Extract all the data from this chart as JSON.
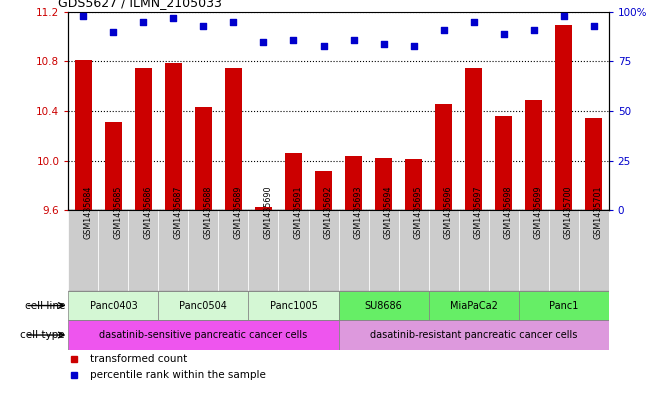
{
  "title": "GDS5627 / ILMN_2105033",
  "samples": [
    "GSM1435684",
    "GSM1435685",
    "GSM1435686",
    "GSM1435687",
    "GSM1435688",
    "GSM1435689",
    "GSM1435690",
    "GSM1435691",
    "GSM1435692",
    "GSM1435693",
    "GSM1435694",
    "GSM1435695",
    "GSM1435696",
    "GSM1435697",
    "GSM1435698",
    "GSM1435699",
    "GSM1435700",
    "GSM1435701"
  ],
  "bar_values": [
    10.81,
    10.31,
    10.75,
    10.79,
    10.43,
    10.75,
    9.63,
    10.06,
    9.92,
    10.04,
    10.02,
    10.01,
    10.46,
    10.75,
    10.36,
    10.49,
    11.09,
    10.34
  ],
  "percentile_values": [
    98,
    90,
    95,
    97,
    93,
    95,
    85,
    86,
    83,
    86,
    84,
    83,
    91,
    95,
    89,
    91,
    98,
    93
  ],
  "ylim_left": [
    9.6,
    11.2
  ],
  "ylim_right": [
    0,
    100
  ],
  "yticks_left": [
    9.6,
    10.0,
    10.4,
    10.8,
    11.2
  ],
  "yticks_right": [
    0,
    25,
    50,
    75,
    100
  ],
  "bar_color": "#cc0000",
  "dot_color": "#0000cc",
  "sample_row_color": "#cccccc",
  "cell_lines": [
    {
      "label": "Panc0403",
      "start": 0,
      "end": 3
    },
    {
      "label": "Panc0504",
      "start": 3,
      "end": 6
    },
    {
      "label": "Panc1005",
      "start": 6,
      "end": 9
    },
    {
      "label": "SU8686",
      "start": 9,
      "end": 12
    },
    {
      "label": "MiaPaCa2",
      "start": 12,
      "end": 15
    },
    {
      "label": "Panc1",
      "start": 15,
      "end": 18
    }
  ],
  "cell_line_colors": [
    "#d4f7d4",
    "#d4f7d4",
    "#d4f7d4",
    "#66ee66",
    "#66ee66",
    "#66ee66"
  ],
  "cell_types": [
    {
      "label": "dasatinib-sensitive pancreatic cancer cells",
      "start": 0,
      "end": 9,
      "color": "#ee55ee"
    },
    {
      "label": "dasatinib-resistant pancreatic cancer cells",
      "start": 9,
      "end": 18,
      "color": "#dd99dd"
    }
  ],
  "legend_items": [
    {
      "color": "#cc0000",
      "label": "transformed count"
    },
    {
      "color": "#0000cc",
      "label": "percentile rank within the sample"
    }
  ],
  "background_color": "#ffffff"
}
